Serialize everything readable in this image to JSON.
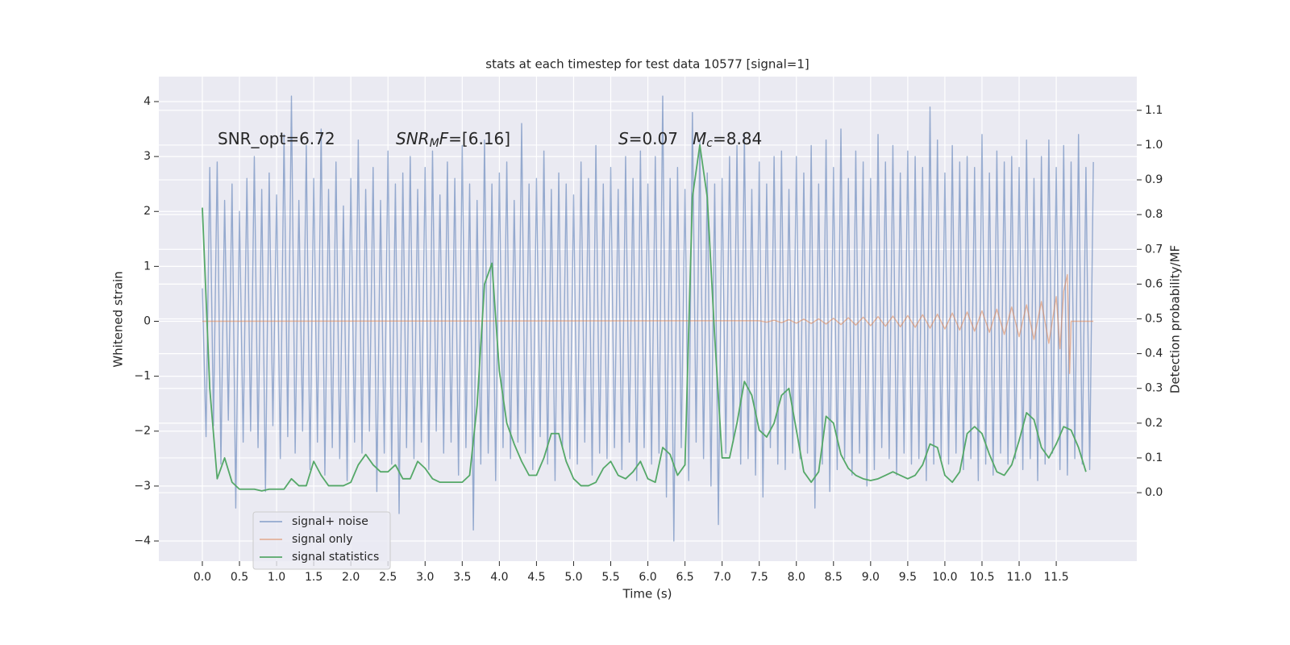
{
  "chart_data": {
    "type": "line",
    "title": "stats at each timestep for test data 10577 [signal=1]",
    "xlabel": "Time (s)",
    "ylabel": "Whitened strain",
    "y2label": "Detection probability/MF",
    "annotations": [
      {
        "text": "SNR_opt=6.72"
      },
      {
        "base": "SNR",
        "sub": "M",
        "base2": "F",
        "text": "=[6.16]"
      },
      {
        "base": "S",
        "text": "=0.07"
      },
      {
        "base": "M",
        "sub": "c",
        "text": "=8.84"
      }
    ],
    "xlim": [
      -0.586,
      12.585
    ],
    "ylim": [
      -4.367,
      4.455
    ],
    "y2lim": [
      -0.197,
      1.197
    ],
    "grid": true,
    "legend": "lower left",
    "xticks": [
      {
        "value": 0,
        "label": "0.0"
      },
      0.5,
      {
        "value": 1,
        "label": "1.0"
      },
      1.5,
      {
        "value": 2,
        "label": "2.0"
      },
      2.5,
      {
        "value": 3,
        "label": "3.0"
      },
      3.5,
      {
        "value": 4,
        "label": "4.0"
      },
      4.5,
      {
        "value": 5,
        "label": "5.0"
      },
      5.5,
      {
        "value": 6,
        "label": "6.0"
      },
      6.5,
      {
        "value": 7,
        "label": "7.0"
      },
      7.5,
      {
        "value": 8,
        "label": "8.0"
      },
      8.5,
      {
        "value": 9,
        "label": "9.0"
      },
      9.5,
      {
        "value": 10,
        "label": "10.0"
      },
      10.5,
      {
        "value": 11,
        "label": "11.0"
      },
      11.5
    ],
    "yticks": [
      {
        "value": -4,
        "label": "−4"
      },
      {
        "value": -3,
        "label": "−3"
      },
      {
        "value": -2,
        "label": "−2"
      },
      {
        "value": -1,
        "label": "−1"
      },
      0,
      1,
      2,
      3,
      4
    ],
    "y2ticks": [
      {
        "value": 0,
        "label": "0.0"
      },
      0.1,
      0.2,
      0.3,
      0.4,
      0.5,
      0.6,
      0.7,
      0.8,
      0.9,
      {
        "value": 1,
        "label": "1.0"
      },
      1.1
    ],
    "x": [
      0,
      0.05,
      0.1,
      0.15,
      0.2,
      0.25,
      0.3,
      0.35,
      0.4,
      0.45,
      0.5,
      0.55,
      0.6,
      0.65,
      0.7,
      0.75,
      0.8,
      0.85,
      0.9,
      0.95,
      1,
      1.05,
      1.1,
      1.15,
      1.2,
      1.25,
      1.3,
      1.35,
      1.4,
      1.45,
      1.5,
      1.55,
      1.6,
      1.65,
      1.7,
      1.75,
      1.8,
      1.85,
      1.9,
      1.95,
      2,
      2.05,
      2.1,
      2.15,
      2.2,
      2.25,
      2.3,
      2.35,
      2.4,
      2.45,
      2.5,
      2.55,
      2.6,
      2.65,
      2.7,
      2.75,
      2.8,
      2.85,
      2.9,
      2.95,
      3,
      3.05,
      3.1,
      3.15,
      3.2,
      3.25,
      3.3,
      3.35,
      3.4,
      3.45,
      3.5,
      3.55,
      3.6,
      3.65,
      3.7,
      3.75,
      3.8,
      3.85,
      3.9,
      3.95,
      4,
      4.05,
      4.1,
      4.15,
      4.2,
      4.25,
      4.3,
      4.35,
      4.4,
      4.45,
      4.5,
      4.55,
      4.6,
      4.65,
      4.7,
      4.75,
      4.8,
      4.85,
      4.9,
      4.95,
      5,
      5.05,
      5.1,
      5.15,
      5.2,
      5.25,
      5.3,
      5.35,
      5.4,
      5.45,
      5.5,
      5.55,
      5.6,
      5.65,
      5.7,
      5.75,
      5.8,
      5.85,
      5.9,
      5.95,
      6,
      6.05,
      6.1,
      6.15,
      6.2,
      6.25,
      6.3,
      6.35,
      6.4,
      6.45,
      6.5,
      6.55,
      6.6,
      6.65,
      6.7,
      6.75,
      6.8,
      6.85,
      6.9,
      6.95,
      7,
      7.05,
      7.1,
      7.15,
      7.2,
      7.25,
      7.3,
      7.35,
      7.4,
      7.45,
      7.5,
      7.55,
      7.6,
      7.65,
      7.7,
      7.75,
      7.8,
      7.85,
      7.9,
      7.95,
      8,
      8.05,
      8.1,
      8.15,
      8.2,
      8.25,
      8.3,
      8.35,
      8.4,
      8.45,
      8.5,
      8.55,
      8.6,
      8.65,
      8.7,
      8.75,
      8.8,
      8.85,
      8.9,
      8.95,
      9,
      9.05,
      9.1,
      9.15,
      9.2,
      9.25,
      9.3,
      9.35,
      9.4,
      9.45,
      9.5,
      9.55,
      9.6,
      9.65,
      9.7,
      9.75,
      9.8,
      9.85,
      9.9,
      9.95,
      10,
      10.05,
      10.1,
      10.15,
      10.2,
      10.25,
      10.3,
      10.35,
      10.4,
      10.45,
      10.5,
      10.55,
      10.6,
      10.65,
      10.7,
      10.75,
      10.8,
      10.85,
      10.9,
      10.95,
      11,
      11.05,
      11.1,
      11.15,
      11.2,
      11.25,
      11.3,
      11.35,
      11.4,
      11.45,
      11.5,
      11.55,
      11.6,
      11.65,
      11.7,
      11.75,
      11.8,
      11.85,
      11.9,
      11.95,
      12
    ],
    "series": [
      {
        "name": "signal+ noise",
        "color": "#4c72b0",
        "values": [
          0.6,
          -2.1,
          2.8,
          -1.9,
          2.9,
          -2.6,
          2.2,
          -1.8,
          2.5,
          -3.4,
          2.0,
          -2.2,
          2.6,
          -2.0,
          3.0,
          -2.3,
          2.4,
          -3.1,
          2.7,
          -1.9,
          2.3,
          -2.5,
          3.4,
          -2.1,
          4.1,
          -2.4,
          2.2,
          -2.0,
          3.2,
          -2.7,
          2.6,
          -2.2,
          3.5,
          -2.8,
          2.4,
          -2.3,
          2.9,
          -2.5,
          2.1,
          -2.9,
          2.6,
          -2.2,
          3.3,
          -2.4,
          2.4,
          -2.0,
          2.8,
          -3.1,
          2.2,
          -2.4,
          3.1,
          -2.6,
          2.5,
          -3.5,
          2.7,
          -2.3,
          3.0,
          -2.5,
          2.4,
          -2.2,
          2.8,
          -2.7,
          3.1,
          -2.0,
          2.3,
          -2.4,
          2.9,
          -2.2,
          2.6,
          -2.8,
          3.2,
          -2.3,
          2.5,
          -3.8,
          2.2,
          -2.6,
          3.3,
          -2.4,
          2.5,
          -2.9,
          2.7,
          -2.3,
          2.9,
          -2.5,
          2.2,
          -2.2,
          3.6,
          -2.4,
          2.5,
          -2.7,
          2.6,
          -2.1,
          3.1,
          -2.6,
          2.4,
          -2.9,
          2.7,
          -2.3,
          2.5,
          -2.5,
          2.3,
          -2.6,
          2.9,
          -2.2,
          2.6,
          -2.8,
          3.2,
          -2.4,
          2.5,
          -2.5,
          2.8,
          -2.3,
          2.4,
          -2.7,
          3.0,
          -2.2,
          2.6,
          -2.9,
          3.1,
          -2.3,
          2.5,
          -2.6,
          3.0,
          -2.4,
          4.1,
          -3.2,
          2.6,
          -4.0,
          2.8,
          -2.3,
          2.4,
          -2.9,
          3.8,
          -2.2,
          3.3,
          -2.5,
          2.7,
          -3.0,
          2.5,
          -3.7,
          2.6,
          -2.4,
          3.0,
          -2.2,
          3.2,
          -2.6,
          3.4,
          -2.5,
          2.4,
          -2.8,
          2.9,
          -3.2,
          2.5,
          -2.3,
          3.0,
          -2.6,
          3.1,
          -2.7,
          2.4,
          -2.4,
          3.0,
          -2.5,
          2.7,
          -2.4,
          3.2,
          -3.4,
          2.5,
          -2.6,
          3.3,
          -3.1,
          2.8,
          -2.7,
          3.5,
          -2.5,
          2.6,
          -2.8,
          3.1,
          -2.4,
          2.9,
          -3.0,
          2.6,
          -2.7,
          3.4,
          -2.3,
          2.9,
          -2.5,
          3.2,
          -2.8,
          2.7,
          -2.4,
          3.1,
          -2.6,
          3.0,
          -2.5,
          2.8,
          -2.9,
          3.9,
          -2.6,
          3.3,
          -2.5,
          2.7,
          -2.6,
          3.2,
          -2.4,
          2.9,
          -2.7,
          3.0,
          -2.5,
          2.8,
          -2.9,
          3.4,
          -2.6,
          2.7,
          -2.8,
          3.1,
          -2.4,
          2.9,
          -2.6,
          3.0,
          -2.5,
          2.8,
          -2.7,
          3.3,
          -2.5,
          2.6,
          -2.9,
          3.0,
          -2.6,
          3.3,
          -2.4,
          2.8,
          -2.7,
          3.2,
          -2.8,
          2.9,
          -2.5,
          3.4,
          -2.6,
          2.8,
          -2.7,
          2.9
        ]
      },
      {
        "name": "signal only",
        "color": "#dd8452",
        "x": [
          0,
          7.5,
          7.6,
          7.7,
          7.8,
          7.9,
          8,
          8.1,
          8.2,
          8.3,
          8.4,
          8.5,
          8.6,
          8.7,
          8.8,
          8.9,
          9,
          9.1,
          9.2,
          9.3,
          9.4,
          9.5,
          9.6,
          9.7,
          9.8,
          9.9,
          10,
          10.1,
          10.2,
          10.3,
          10.4,
          10.5,
          10.6,
          10.7,
          10.8,
          10.9,
          11,
          11.1,
          11.2,
          11.3,
          11.4,
          11.5,
          11.55,
          11.6,
          11.65,
          11.68,
          11.7,
          12
        ],
        "values": [
          0,
          0.01,
          -0.015,
          0.02,
          -0.025,
          0.03,
          -0.035,
          0.04,
          -0.04,
          0.045,
          -0.05,
          0.055,
          -0.06,
          0.065,
          -0.07,
          0.075,
          -0.08,
          0.085,
          -0.09,
          0.095,
          -0.1,
          0.105,
          -0.11,
          0.12,
          -0.125,
          0.13,
          -0.14,
          0.15,
          -0.16,
          0.17,
          -0.18,
          0.19,
          -0.2,
          0.22,
          -0.24,
          0.26,
          -0.28,
          0.3,
          -0.33,
          0.36,
          -0.4,
          0.45,
          -0.5,
          0.55,
          0.85,
          -0.95,
          0,
          0
        ]
      },
      {
        "name": "signal statistics",
        "color": "#55a868",
        "axis": "y2",
        "x": [
          0,
          0.1,
          0.2,
          0.3,
          0.4,
          0.5,
          0.6,
          0.7,
          0.8,
          0.9,
          1,
          1.1,
          1.2,
          1.3,
          1.4,
          1.5,
          1.6,
          1.7,
          1.8,
          1.9,
          2,
          2.1,
          2.2,
          2.3,
          2.4,
          2.5,
          2.6,
          2.7,
          2.8,
          2.9,
          3,
          3.1,
          3.2,
          3.3,
          3.4,
          3.5,
          3.6,
          3.7,
          3.8,
          3.9,
          4,
          4.1,
          4.2,
          4.3,
          4.4,
          4.5,
          4.6,
          4.7,
          4.8,
          4.9,
          5,
          5.1,
          5.2,
          5.3,
          5.4,
          5.5,
          5.6,
          5.7,
          5.8,
          5.9,
          6,
          6.1,
          6.2,
          6.3,
          6.4,
          6.5,
          6.6,
          6.7,
          6.8,
          6.9,
          7,
          7.1,
          7.2,
          7.3,
          7.4,
          7.5,
          7.6,
          7.7,
          7.8,
          7.9,
          8,
          8.1,
          8.2,
          8.3,
          8.4,
          8.5,
          8.6,
          8.7,
          8.8,
          8.9,
          9,
          9.1,
          9.2,
          9.3,
          9.4,
          9.5,
          9.6,
          9.7,
          9.8,
          9.9,
          10,
          10.1,
          10.2,
          10.3,
          10.4,
          10.5,
          10.6,
          10.7,
          10.8,
          10.9,
          11,
          11.1,
          11.2,
          11.3,
          11.4,
          11.5,
          11.6,
          11.7,
          11.8,
          11.9
        ],
        "values": [
          0.82,
          0.3,
          0.04,
          0.1,
          0.03,
          0.01,
          0.01,
          0.01,
          0.005,
          0.01,
          0.01,
          0.01,
          0.04,
          0.02,
          0.02,
          0.09,
          0.05,
          0.02,
          0.02,
          0.02,
          0.03,
          0.08,
          0.11,
          0.08,
          0.06,
          0.06,
          0.08,
          0.04,
          0.04,
          0.09,
          0.07,
          0.04,
          0.03,
          0.03,
          0.03,
          0.03,
          0.05,
          0.25,
          0.6,
          0.66,
          0.35,
          0.2,
          0.14,
          0.09,
          0.05,
          0.05,
          0.1,
          0.17,
          0.17,
          0.09,
          0.04,
          0.02,
          0.02,
          0.03,
          0.07,
          0.09,
          0.05,
          0.04,
          0.06,
          0.09,
          0.04,
          0.03,
          0.13,
          0.11,
          0.05,
          0.08,
          0.85,
          1.0,
          0.85,
          0.45,
          0.1,
          0.1,
          0.2,
          0.32,
          0.28,
          0.18,
          0.16,
          0.2,
          0.28,
          0.3,
          0.18,
          0.06,
          0.03,
          0.06,
          0.22,
          0.2,
          0.11,
          0.07,
          0.05,
          0.04,
          0.035,
          0.04,
          0.05,
          0.06,
          0.05,
          0.04,
          0.05,
          0.08,
          0.14,
          0.13,
          0.05,
          0.03,
          0.06,
          0.17,
          0.19,
          0.17,
          0.11,
          0.06,
          0.05,
          0.08,
          0.15,
          0.23,
          0.21,
          0.13,
          0.1,
          0.14,
          0.19,
          0.18,
          0.13,
          0.06
        ]
      }
    ]
  }
}
